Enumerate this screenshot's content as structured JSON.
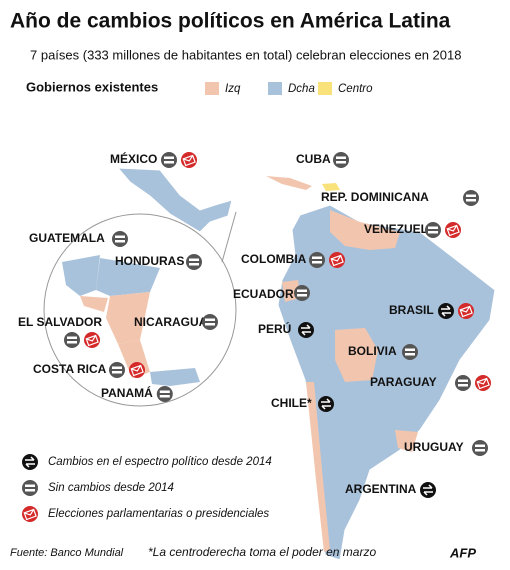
{
  "header": {
    "title": "Año de cambios políticos en América Latina",
    "subtitle": "7 países (333 millones de habitantes en total) celebran elecciones en 2018"
  },
  "governments": {
    "title": "Gobiernos existentes",
    "items": [
      {
        "label": "Izq",
        "color": "#f2c6ae"
      },
      {
        "label": "Dcha",
        "color": "#a9c2db"
      },
      {
        "label": "Centro",
        "color": "#f9e27a"
      }
    ]
  },
  "countries": [
    {
      "name": "MÉXICO",
      "icons": [
        "same",
        "election"
      ]
    },
    {
      "name": "CUBA",
      "icons": [
        "same"
      ]
    },
    {
      "name": "REP. DOMINICANA",
      "icons": [
        "same"
      ]
    },
    {
      "name": "VENEZUELA",
      "icons": [
        "same",
        "election"
      ]
    },
    {
      "name": "COLOMBIA",
      "icons": [
        "same",
        "election"
      ]
    },
    {
      "name": "ECUADOR",
      "icons": [
        "same"
      ]
    },
    {
      "name": "PERÚ",
      "icons": [
        "change"
      ]
    },
    {
      "name": "BRASIL",
      "icons": [
        "change",
        "election"
      ]
    },
    {
      "name": "BOLIVIA",
      "icons": [
        "same"
      ]
    },
    {
      "name": "PARAGUAY",
      "icons": [
        "same",
        "election"
      ]
    },
    {
      "name": "CHILE*",
      "icons": [
        "change"
      ]
    },
    {
      "name": "URUGUAY",
      "icons": [
        "same"
      ]
    },
    {
      "name": "ARGENTINA",
      "icons": [
        "change"
      ]
    },
    {
      "name": "GUATEMALA",
      "icons": [
        "same"
      ]
    },
    {
      "name": "HONDURAS",
      "icons": [
        "same"
      ]
    },
    {
      "name": "EL SALVADOR",
      "icons": [
        "same",
        "election"
      ]
    },
    {
      "name": "NICARAGUA",
      "icons": [
        "same"
      ]
    },
    {
      "name": "COSTA RICA",
      "icons": [
        "same",
        "election"
      ]
    },
    {
      "name": "PANAMÁ",
      "icons": [
        "same"
      ]
    }
  ],
  "symbols": [
    {
      "icon": "change",
      "label": "Cambios en el espectro político desde 2014"
    },
    {
      "icon": "same",
      "label": "Sin cambios desde 2014"
    },
    {
      "icon": "election",
      "label": "Elecciones parlamentarias o presidenciales"
    }
  ],
  "footer": {
    "source": "Fuente: Banco Mundial",
    "note": "*La centroderecha toma el poder en marzo",
    "credit": "AFP"
  }
}
